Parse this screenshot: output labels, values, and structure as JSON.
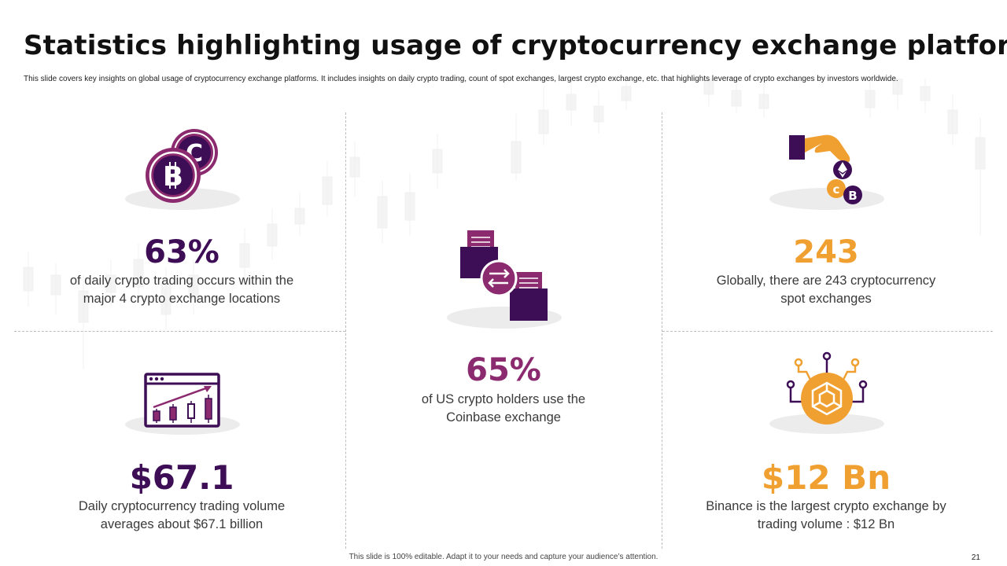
{
  "slide": {
    "title": "Statistics highlighting usage of cryptocurrency exchange platforms",
    "subtitle": "This slide covers key insights on global usage of cryptocurrency exchange platforms. It includes insights on daily crypto trading, count of spot exchanges, largest crypto exchange, etc. that highlights leverage of crypto exchanges by investors worldwide.",
    "footer": "This slide is 100% editable. Adapt it to your needs and capture your audience’s attention.",
    "page_number": "21"
  },
  "colors": {
    "purple": "#3d0d55",
    "magenta": "#8b2a6e",
    "orange": "#f0a030",
    "shadow": "#ececec"
  },
  "stats": [
    {
      "value": "63%",
      "text_line1": "of daily crypto trading occurs within the",
      "text_line2": "major 4 crypto exchange locations",
      "icon": "coins-icon"
    },
    {
      "value": "65%",
      "text_line1": "of US crypto holders use the",
      "text_line2": "Coinbase exchange",
      "icon": "exchange-folders-icon"
    },
    {
      "value": "243",
      "text_line1": "Globally, there are 243 cryptocurrency",
      "text_line2": "spot exchanges",
      "icon": "hand-crypto-icon"
    },
    {
      "value": "$67.1",
      "text_line1": "Daily cryptocurrency trading volume",
      "text_line2": "averages about $67.1 billion",
      "icon": "trading-chart-icon"
    },
    {
      "value": "$12 Bn",
      "text_line1": "Binance is the largest crypto exchange by",
      "text_line2": "trading volume : $12 Bn",
      "icon": "binance-circuit-icon"
    }
  ]
}
